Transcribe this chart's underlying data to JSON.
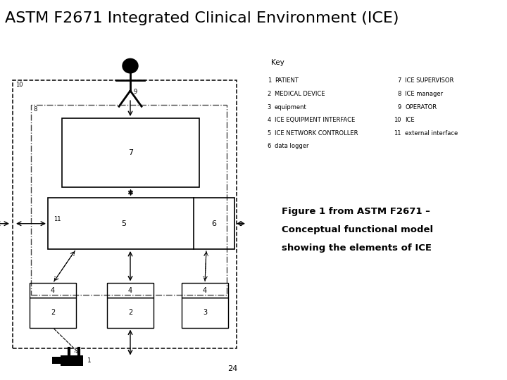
{
  "title": "ASTM F2671 Integrated Clinical Environment (ICE)",
  "title_fontsize": 16,
  "background_color": "#ffffff",
  "key_title": "Key",
  "key_items_left": [
    [
      "1",
      "PATIENT"
    ],
    [
      "2",
      "MEDICAL DEVICE"
    ],
    [
      "3",
      "equipment"
    ],
    [
      "4",
      "ICE EQUIPMENT INTERFACE"
    ],
    [
      "5",
      "ICE NETWORK CONTROLLER"
    ],
    [
      "6",
      "data logger"
    ]
  ],
  "key_items_right": [
    [
      "7",
      "ICE SUPERVISOR"
    ],
    [
      "8",
      "ICE manager"
    ],
    [
      "9",
      "OPERATOR"
    ],
    [
      "10",
      "ICE"
    ],
    [
      "11",
      "external interface"
    ]
  ],
  "caption_lines": [
    "Figure 1 from ASTM F2671 –",
    "Conceptual functional model",
    "showing the elements of ICE"
  ],
  "page_number": "24"
}
